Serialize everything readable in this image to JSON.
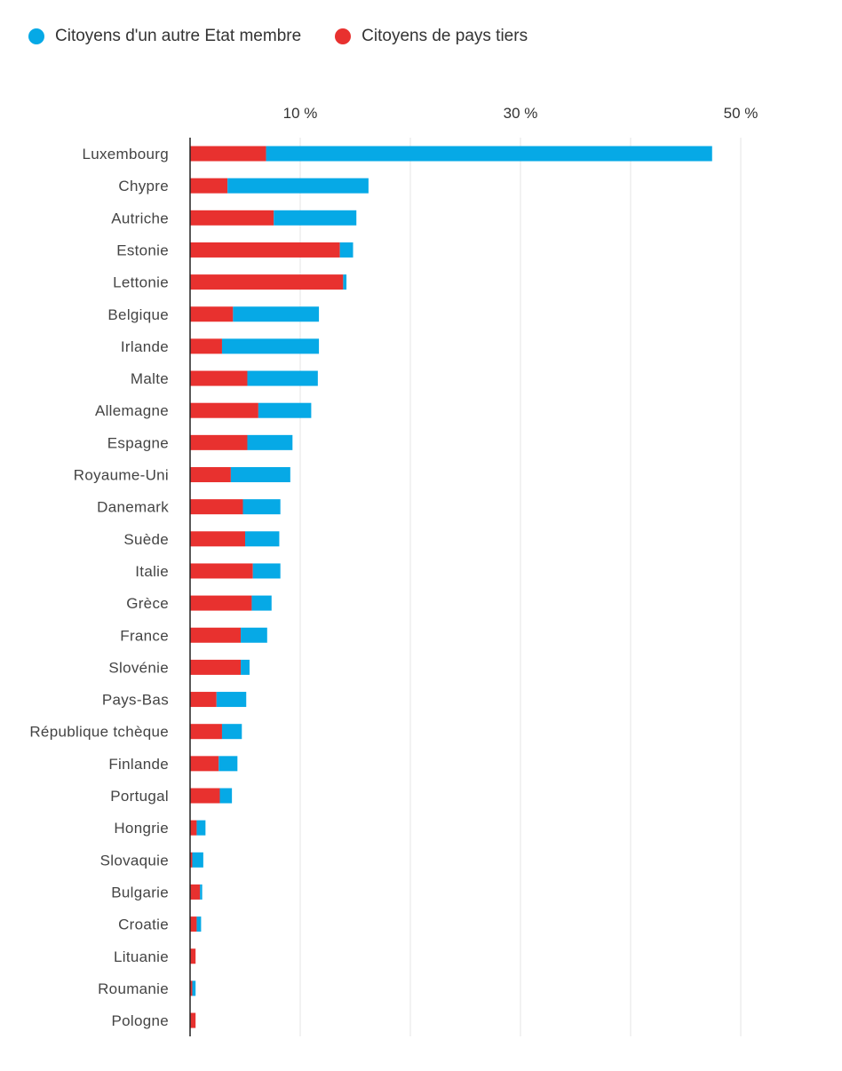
{
  "chart_data": {
    "type": "bar",
    "orientation": "horizontal",
    "stacked": true,
    "legend_position": "top-left",
    "grid": true,
    "xlim": [
      0,
      50
    ],
    "x_ticks": [
      {
        "value": 10,
        "label": "10 %"
      },
      {
        "value": 30,
        "label": "30 %"
      },
      {
        "value": 50,
        "label": "50 %"
      }
    ],
    "x_gridlines": [
      10,
      20,
      30,
      40,
      50
    ],
    "categories": [
      "Luxembourg",
      "Chypre",
      "Autriche",
      "Estonie",
      "Lettonie",
      "Belgique",
      "Irlande",
      "Malte",
      "Allemagne",
      "Espagne",
      "Royaume-Uni",
      "Danemark",
      "Suède",
      "Italie",
      "Grèce",
      "France",
      "Slovénie",
      "Pays-Bas",
      "République tchèque",
      "Finlande",
      "Portugal",
      "Hongrie",
      "Slovaquie",
      "Bulgarie",
      "Croatie",
      "Lituanie",
      "Roumanie",
      "Pologne"
    ],
    "series": [
      {
        "name": "Citoyens de pays tiers",
        "color": "#e8312f",
        "values": [
          6.9,
          3.4,
          7.6,
          13.6,
          13.9,
          3.9,
          2.9,
          5.2,
          6.2,
          5.2,
          3.7,
          4.8,
          5.0,
          5.7,
          5.6,
          4.6,
          4.6,
          2.4,
          2.9,
          2.6,
          2.7,
          0.6,
          0.2,
          0.9,
          0.6,
          0.5,
          0.2,
          0.5
        ]
      },
      {
        "name": "Citoyens d'un autre Etat membre",
        "color": "#06a9e6",
        "values": [
          40.5,
          12.8,
          7.5,
          1.2,
          0.3,
          7.8,
          8.8,
          6.4,
          4.8,
          4.1,
          5.4,
          3.4,
          3.1,
          2.5,
          1.8,
          2.4,
          0.8,
          2.7,
          1.8,
          1.7,
          1.1,
          0.8,
          1.0,
          0.2,
          0.4,
          0.0,
          0.3,
          0.0
        ]
      }
    ]
  }
}
